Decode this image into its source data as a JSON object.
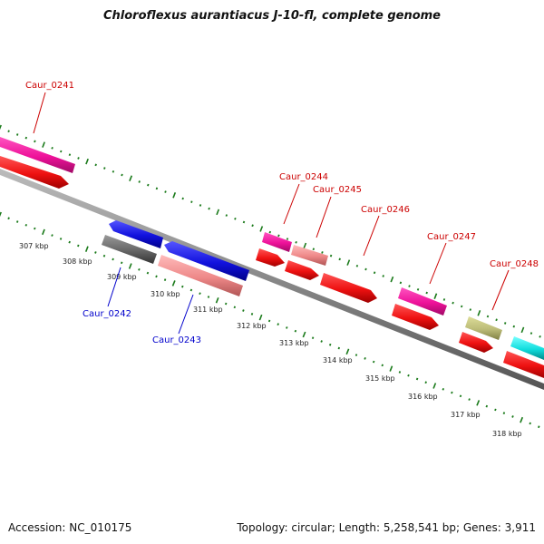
{
  "title": "Chloroflexus aurantiacus J-10-fl, complete genome",
  "footer": {
    "accession": "Accession: NC_010175",
    "summary": "Topology: circular; Length: 5,258,541 bp; Genes: 3,911"
  },
  "colors": {
    "forward_label": "#cc0000",
    "reverse_label": "#0000cc",
    "backbone": "#888888",
    "tick": "#1a7a1a",
    "magenta": "#ee1199",
    "red": "#ee1111",
    "blue": "#1111dd",
    "salmon": "#ee8888",
    "gray": "#666666",
    "olive": "#bbbb77",
    "cyan": "#11dddd"
  },
  "scale": {
    "ticks": [
      {
        "kbp": 307,
        "label": "307 kbp"
      },
      {
        "kbp": 308,
        "label": "308 kbp"
      },
      {
        "kbp": 309,
        "label": "309 kbp"
      },
      {
        "kbp": 310,
        "label": "310 kbp"
      },
      {
        "kbp": 311,
        "label": "311 kbp"
      },
      {
        "kbp": 312,
        "label": "312 kbp"
      },
      {
        "kbp": 313,
        "label": "313 kbp"
      },
      {
        "kbp": 314,
        "label": "314 kbp"
      },
      {
        "kbp": 315,
        "label": "315 kbp"
      },
      {
        "kbp": 316,
        "label": "316 kbp"
      },
      {
        "kbp": 317,
        "label": "317 kbp"
      },
      {
        "kbp": 318,
        "label": "318 kbp"
      }
    ]
  },
  "genes": [
    {
      "name": "Caur_0241",
      "strand": "+",
      "start_kbp": 305.5,
      "end_kbp": 306.9
    },
    {
      "name": "Caur_0242",
      "strand": "-",
      "start_kbp": 308.5,
      "end_kbp": 309.5
    },
    {
      "name": "Caur_0243",
      "strand": "-",
      "start_kbp": 309.6,
      "end_kbp": 311.1
    },
    {
      "name": "Caur_0244",
      "strand": "+",
      "start_kbp": 311.8,
      "end_kbp": 312.4
    },
    {
      "name": "Caur_0245",
      "strand": "+",
      "start_kbp": 312.5,
      "end_kbp": 313.2
    },
    {
      "name": "Caur_0246",
      "strand": "+",
      "start_kbp": 313.3,
      "end_kbp": 314.4
    },
    {
      "name": "Caur_0247",
      "strand": "+",
      "start_kbp": 314.8,
      "end_kbp": 315.8
    },
    {
      "name": "Caur_0248",
      "strand": "+",
      "start_kbp": 316.2,
      "end_kbp": 316.9
    }
  ]
}
